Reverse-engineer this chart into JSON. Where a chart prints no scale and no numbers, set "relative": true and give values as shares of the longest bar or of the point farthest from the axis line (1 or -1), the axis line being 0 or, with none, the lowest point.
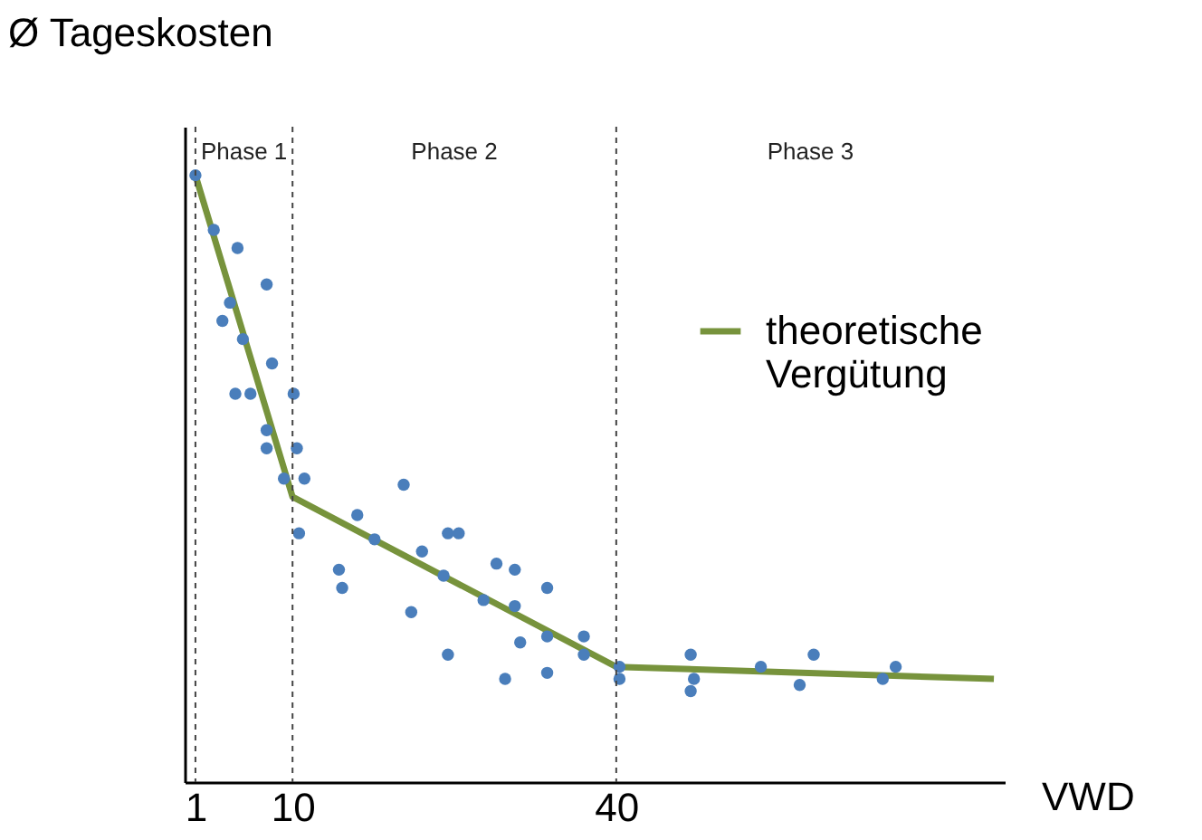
{
  "chart_data": {
    "type": "scatter",
    "relative": true,
    "xlabel": "VWD",
    "ylabel": "Ø Tageskosten",
    "xlim": [
      0,
      76
    ],
    "xticks": [
      1,
      10,
      40
    ],
    "grid": false,
    "legend": "top right",
    "series": [
      {
        "type": "scatter",
        "color": "#4a7ebb",
        "x": [
          1,
          2.7,
          4.9,
          7.6,
          4.2,
          3.5,
          5.4,
          8.1,
          4.7,
          6.1,
          10.1,
          7.6,
          7.6,
          10.4,
          9.2,
          11.1,
          10.6,
          16,
          20.3,
          17.6,
          14.3,
          14.6,
          22,
          24.4,
          25.4,
          24,
          21,
          24.4,
          28.9,
          30.6,
          27.7,
          30.6,
          33.6,
          31.1,
          33.6,
          37,
          37,
          29.7,
          33.6,
          40.3,
          40.3,
          46.9,
          47.2,
          46.9,
          53.4,
          57,
          58.3,
          64.7,
          65.9
        ],
        "values": [
          1,
          0.91,
          0.88,
          0.82,
          0.79,
          0.76,
          0.73,
          0.69,
          0.64,
          0.64,
          0.64,
          0.58,
          0.55,
          0.55,
          0.5,
          0.5,
          0.41,
          0.44,
          0.49,
          0.4,
          0.35,
          0.32,
          0.38,
          0.41,
          0.41,
          0.34,
          0.28,
          0.21,
          0.36,
          0.35,
          0.3,
          0.29,
          0.32,
          0.23,
          0.24,
          0.24,
          0.21,
          0.17,
          0.18,
          0.19,
          0.17,
          0.21,
          0.17,
          0.15,
          0.19,
          0.16,
          0.21,
          0.17,
          0.19
        ]
      },
      {
        "type": "line",
        "name": "theoretische Vergütung",
        "color": "#77933c",
        "x": [
          1,
          10,
          40,
          75
        ],
        "values": [
          1,
          0.47,
          0.19,
          0.17
        ]
      }
    ],
    "ref_lines": [
      {
        "axis": "x",
        "value": 1,
        "line_style": "dashed"
      },
      {
        "axis": "x",
        "value": 10,
        "line_style": "dashed"
      },
      {
        "axis": "x",
        "value": 40,
        "line_style": "dashed"
      }
    ],
    "annotations": [
      "Phase 1",
      "Phase 2",
      "Phase 3"
    ]
  }
}
